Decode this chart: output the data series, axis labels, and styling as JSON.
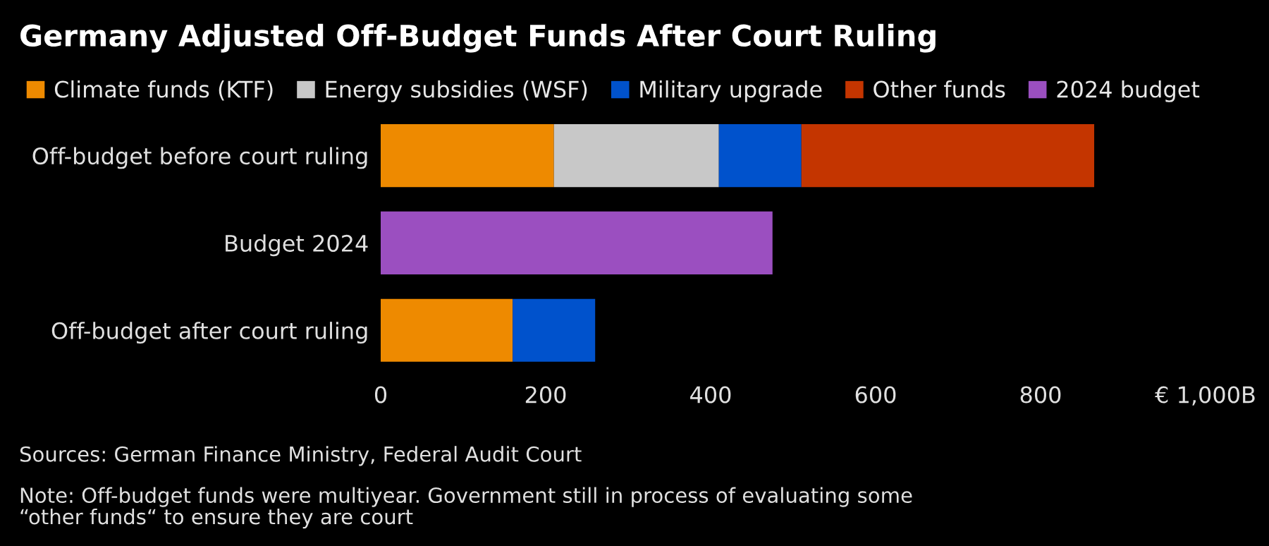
{
  "chart_data": {
    "type": "bar",
    "orientation": "horizontal",
    "stacked": true,
    "title": "Germany Adjusted Off-Budget Funds After Court Ruling",
    "categories": [
      "Off-budget before court ruling",
      "Budget 2024",
      "Off-budget after court ruling"
    ],
    "series": [
      {
        "name": "Climate funds (KTF)",
        "color": "#ee8a00",
        "values": [
          210,
          null,
          160
        ]
      },
      {
        "name": "Energy subsidies (WSF)",
        "color": "#c8c8c8",
        "values": [
          200,
          null,
          null
        ]
      },
      {
        "name": "Military upgrade",
        "color": "#0052cc",
        "values": [
          100,
          null,
          100
        ]
      },
      {
        "name": "Other funds",
        "color": "#c43500",
        "values": [
          355,
          null,
          null
        ]
      },
      {
        "name": "2024 budget",
        "color": "#9b4fc0",
        "values": [
          null,
          475,
          null
        ]
      }
    ],
    "xlim": [
      0,
      1000
    ],
    "xticks": [
      0,
      200,
      400,
      600,
      800,
      {
        "value": 1000,
        "label": "€ 1,000B"
      }
    ],
    "grid": false,
    "legend": "top",
    "annotations": [
      "Sources: German Finance Ministry, Federal Audit Court",
      "Note: Off-budget funds were multiyear. Government still in process of evaluating some\n“other funds“ to ensure they are court"
    ]
  }
}
